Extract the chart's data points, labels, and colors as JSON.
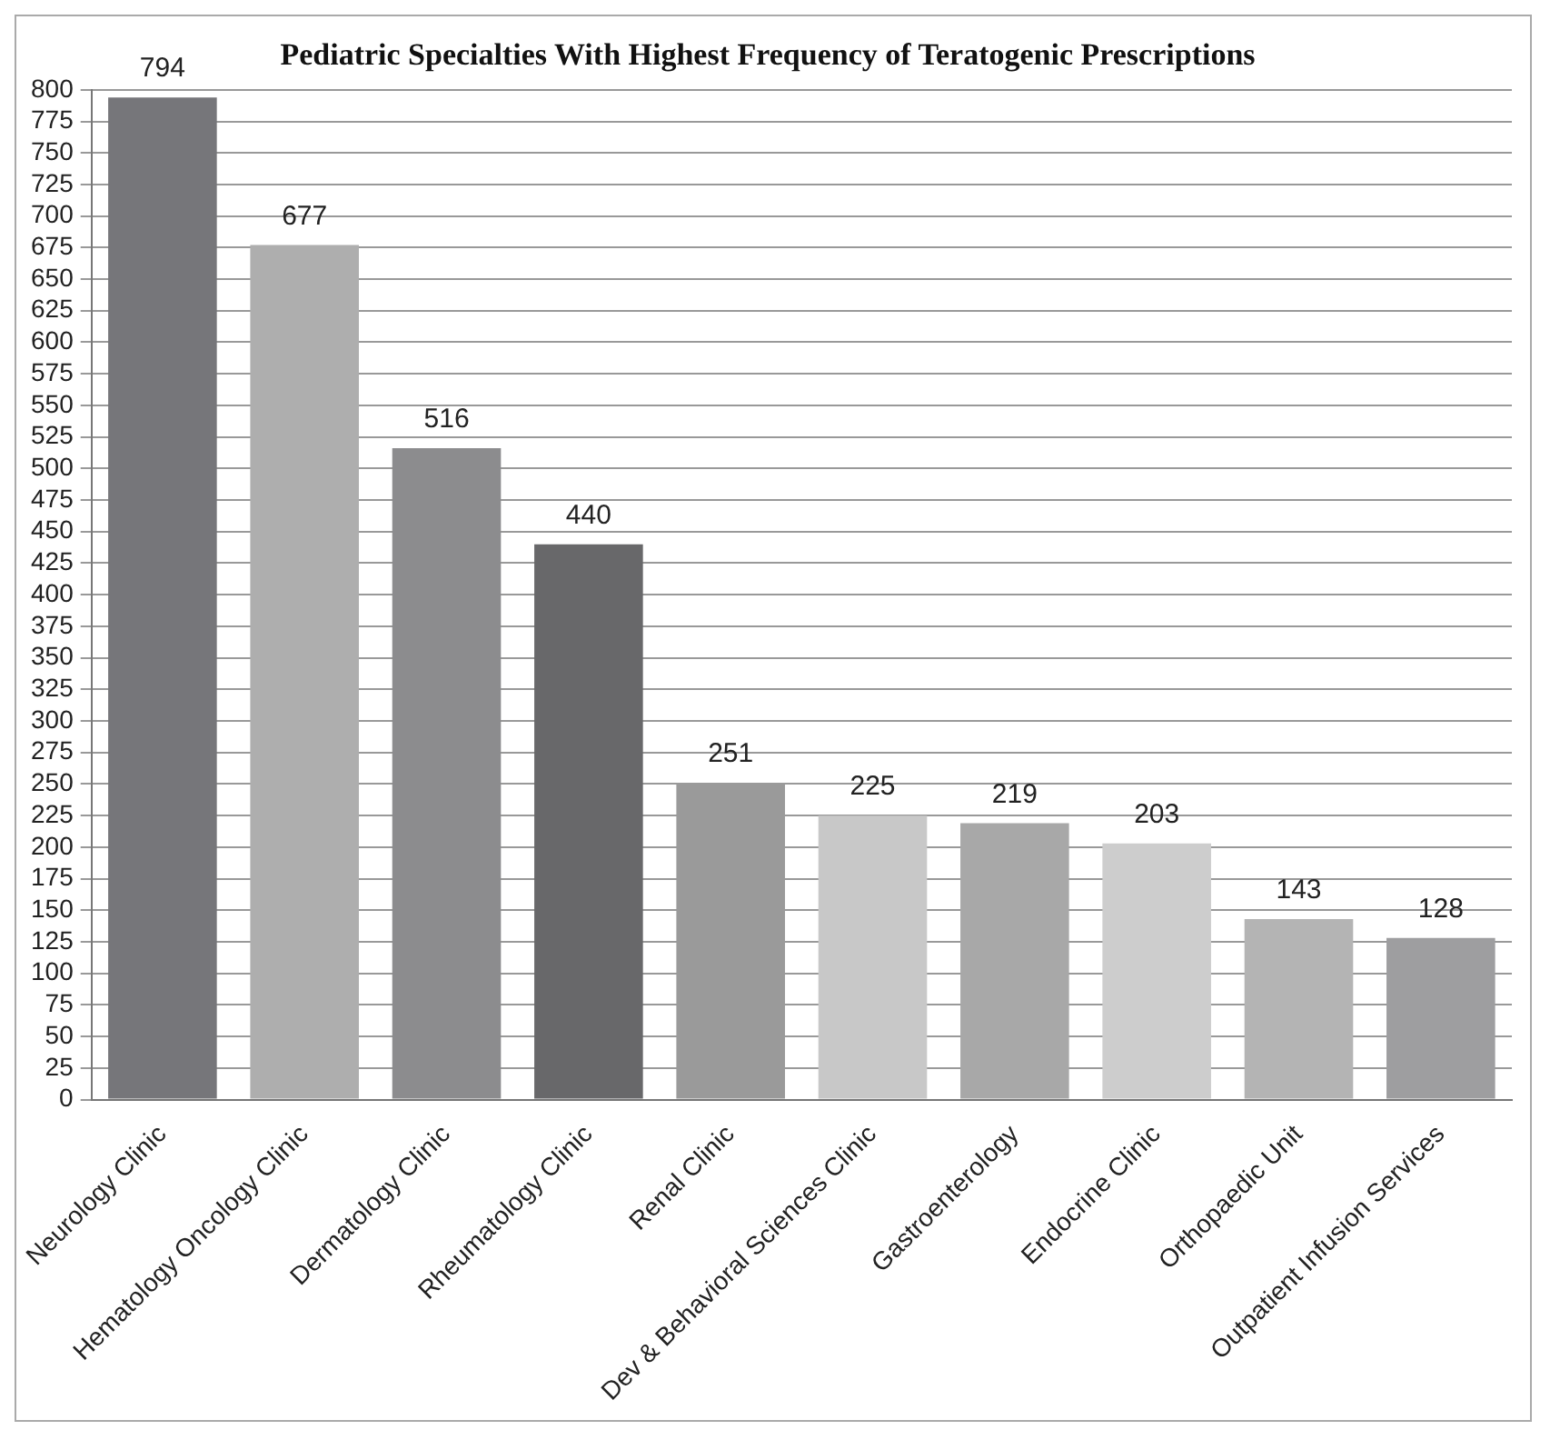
{
  "chart_data": {
    "type": "bar",
    "title": "Pediatric Specialties With Highest Frequency of Teratogenic Prescriptions",
    "categories": [
      "Neurology Clinic",
      "Hematology Oncology Clinic",
      "Dermatology Clinic",
      "Rheumatology Clinic",
      "Renal Clinic",
      "Dev & Behavioral Sciences Clinic",
      "Gastroenterology",
      "Endocrine Clinic",
      "Orthopaedic Unit",
      "Outpatient Infusion Services"
    ],
    "values": [
      794,
      677,
      516,
      440,
      251,
      225,
      219,
      203,
      143,
      128
    ],
    "colors": [
      "#76767a",
      "#aeaeae",
      "#8c8c8e",
      "#68686a",
      "#9a9a9a",
      "#c8c8c8",
      "#a8a8a8",
      "#cdcdcd",
      "#b4b4b4",
      "#9e9ea0"
    ],
    "ylim": [
      0,
      800
    ],
    "yticks": [
      0,
      25,
      50,
      75,
      100,
      125,
      150,
      175,
      200,
      225,
      250,
      275,
      300,
      325,
      350,
      375,
      400,
      425,
      450,
      475,
      500,
      525,
      550,
      575,
      600,
      625,
      650,
      675,
      700,
      725,
      750,
      775,
      800
    ],
    "grid": "y",
    "data_labels": true,
    "legend": false
  }
}
